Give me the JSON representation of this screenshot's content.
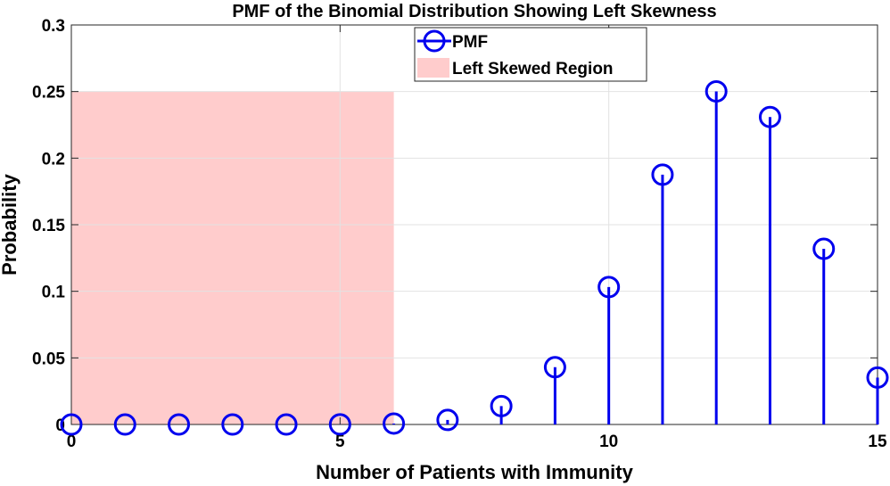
{
  "chart_data": {
    "type": "stem",
    "title": "PMF of the Binomial Distribution Showing Left Skewness",
    "xlabel": "Number of Patients with Immunity",
    "ylabel": "Probability",
    "xlim": [
      0,
      15
    ],
    "ylim": [
      0,
      0.3
    ],
    "xticks": [
      0,
      5,
      10,
      15
    ],
    "yticks": [
      0,
      0.05,
      0.1,
      0.15,
      0.2,
      0.25,
      0.3
    ],
    "xtick_labels": [
      "0",
      "5",
      "10",
      "15"
    ],
    "ytick_labels": [
      "0",
      "0.05",
      "0.1",
      "0.15",
      "0.2",
      "0.25",
      "0.3"
    ],
    "grid": true,
    "legend_position": "top-center",
    "series": [
      {
        "name": "PMF",
        "color": "#0000ee",
        "marker": "open-circle",
        "x": [
          0,
          1,
          2,
          3,
          4,
          5,
          6,
          7,
          8,
          9,
          10,
          11,
          12,
          13,
          14,
          15
        ],
        "values": [
          0,
          0,
          0,
          0,
          0,
          0.0001,
          0.0007,
          0.0034,
          0.0138,
          0.043,
          0.1032,
          0.1876,
          0.2501,
          0.2309,
          0.1319,
          0.0352
        ]
      }
    ],
    "shaded_region": {
      "name": "Left Skewed Region",
      "color": "#ffcccc",
      "x_range": [
        0,
        6
      ],
      "y_range": [
        0,
        0.25
      ]
    }
  }
}
